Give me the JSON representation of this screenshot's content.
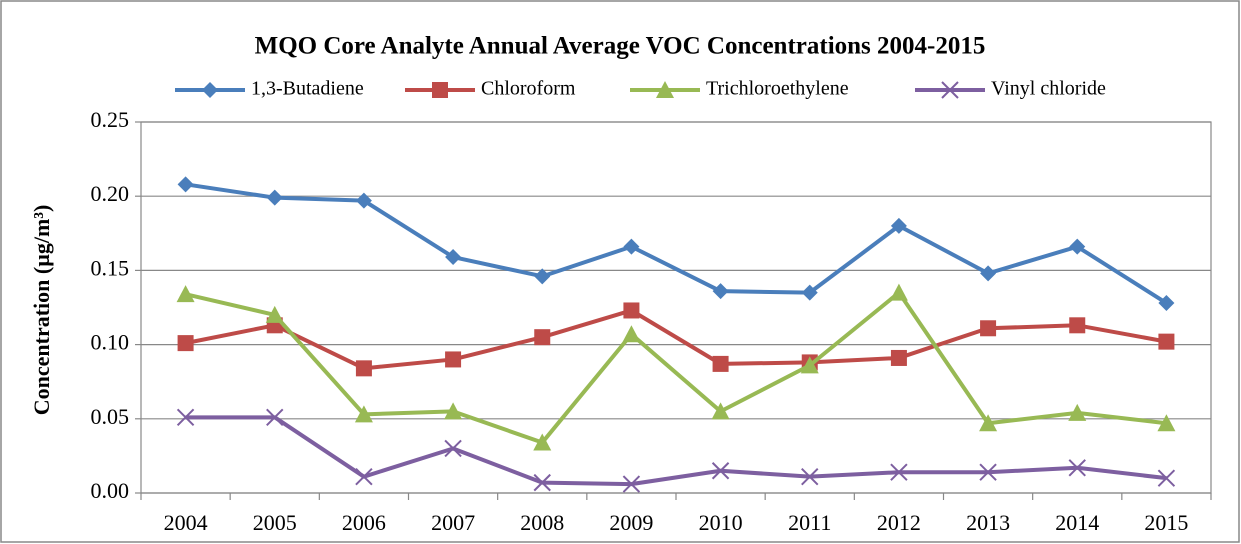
{
  "chart_data": {
    "type": "line",
    "title": "MQO Core Analyte Annual Average VOC Concentrations 2004-2015",
    "y_label": "Concentration (µg/m³)",
    "categories": [
      "2004",
      "2005",
      "2006",
      "2007",
      "2008",
      "2009",
      "2010",
      "2011",
      "2012",
      "2013",
      "2014",
      "2015"
    ],
    "series": [
      {
        "name": "1,3-Butadiene",
        "color": "#4a7ebb",
        "marker": "diamond",
        "values": [
          0.208,
          0.199,
          0.197,
          0.159,
          0.146,
          0.166,
          0.136,
          0.135,
          0.18,
          0.148,
          0.166,
          0.128
        ]
      },
      {
        "name": "Chloroform",
        "color": "#be4b48",
        "marker": "square",
        "values": [
          0.101,
          0.113,
          0.084,
          0.09,
          0.105,
          0.123,
          0.087,
          0.088,
          0.091,
          0.111,
          0.113,
          0.102
        ]
      },
      {
        "name": "Trichloroethylene",
        "color": "#98b954",
        "marker": "triangle",
        "values": [
          0.134,
          0.12,
          0.053,
          0.055,
          0.034,
          0.107,
          0.055,
          0.086,
          0.135,
          0.047,
          0.054,
          0.047
        ]
      },
      {
        "name": "Vinyl chloride",
        "color": "#7d5fa0",
        "marker": "x",
        "values": [
          0.051,
          0.051,
          0.011,
          0.03,
          0.007,
          0.006,
          0.015,
          0.011,
          0.014,
          0.014,
          0.017,
          0.01
        ]
      }
    ],
    "ylim": [
      0,
      0.25
    ],
    "yticks": [
      {
        "value": 0,
        "label": "0.00"
      },
      0.05,
      {
        "value": 0.1,
        "label": "0.10"
      },
      0.15,
      {
        "value": 0.2,
        "label": "0.20"
      },
      0.25
    ],
    "grid": true,
    "legend": "top"
  }
}
